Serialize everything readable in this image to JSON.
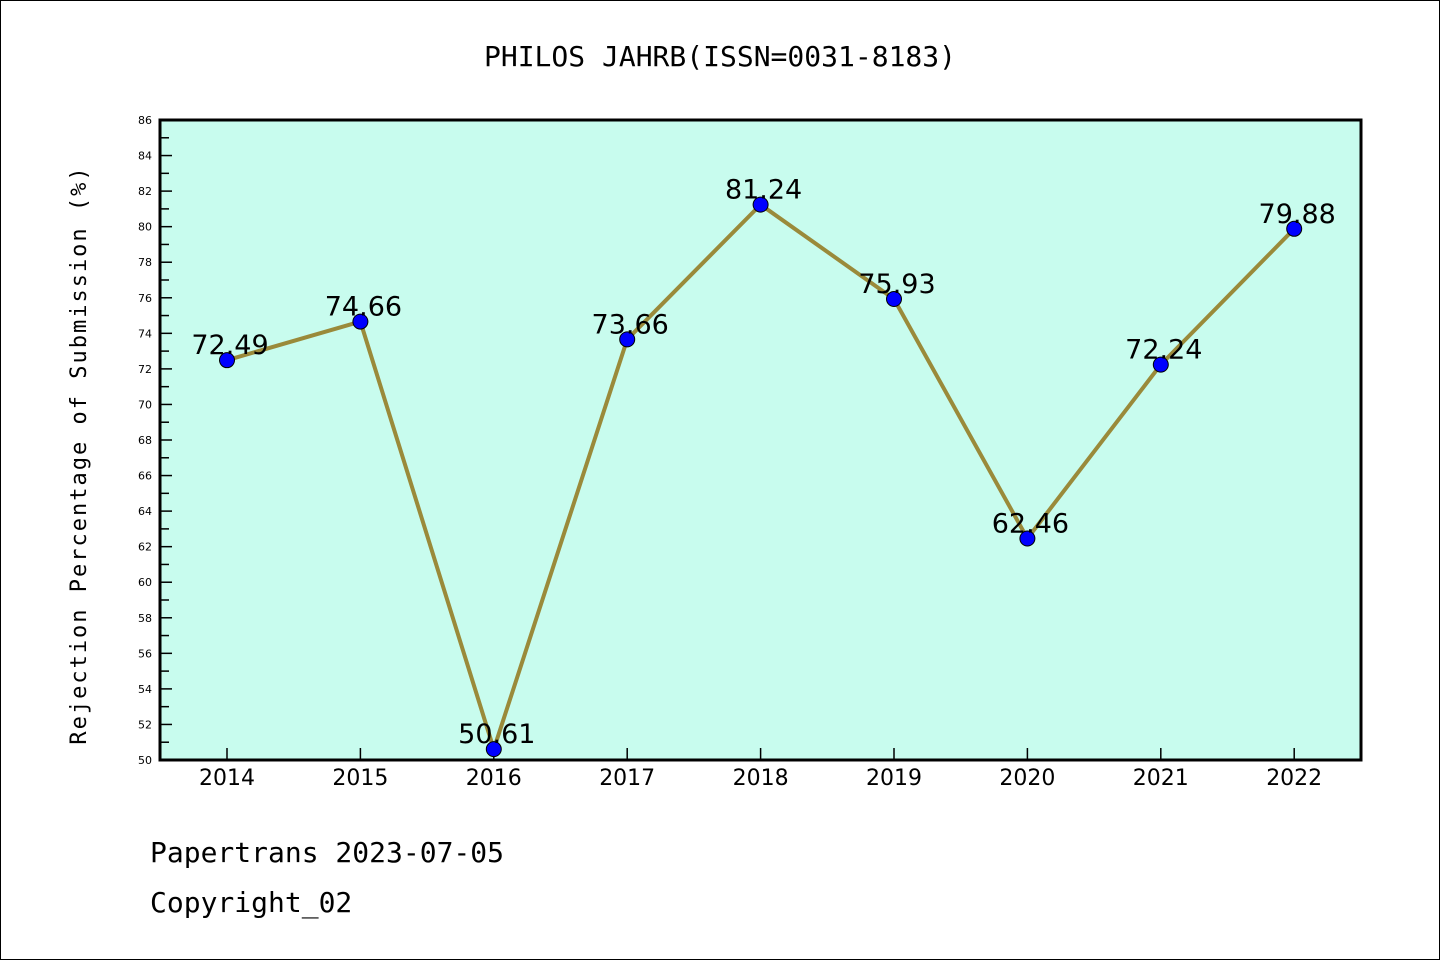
{
  "chart_data": {
    "type": "line",
    "title": "PHILOS JAHRB(ISSN=0031-8183)",
    "xlabel": "",
    "ylabel": "Rejection Percentage of Submission (%)",
    "categories": [
      "2014",
      "2015",
      "2016",
      "2017",
      "2018",
      "2019",
      "2020",
      "2021",
      "2022"
    ],
    "values": [
      72.49,
      74.66,
      50.61,
      73.66,
      81.24,
      75.93,
      62.46,
      72.24,
      79.88
    ],
    "data_labels": [
      "72.49",
      "74.66",
      "50.61",
      "73.66",
      "81.24",
      "75.93",
      "62.46",
      "72.24",
      "79.88"
    ],
    "ylim": [
      50,
      86
    ],
    "yticks": [
      "50",
      "52",
      "54",
      "56",
      "58",
      "60",
      "62",
      "64",
      "66",
      "68",
      "70",
      "72",
      "74",
      "76",
      "78",
      "80",
      "82",
      "84",
      "86"
    ],
    "grid": false,
    "colors": {
      "background": "#c8fcee",
      "line": "#9a8a3a",
      "marker": "#0000ff"
    }
  },
  "footer": {
    "line1": "Papertrans 2023-07-05",
    "line2": "Copyright_02"
  }
}
